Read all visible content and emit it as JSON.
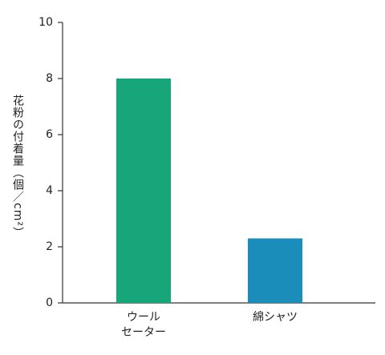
{
  "chart_data": {
    "type": "bar",
    "y_label": "花粉の付着量（個／cm²）",
    "categories": [
      "ウール\nセーター",
      "綿シャツ"
    ],
    "values": [
      8,
      2.3
    ],
    "colors": [
      "#16a67a",
      "#1a8dbb"
    ],
    "ylim": [
      0,
      10
    ],
    "yticks": [
      0,
      2,
      4,
      6,
      8,
      10
    ],
    "grid": false
  }
}
